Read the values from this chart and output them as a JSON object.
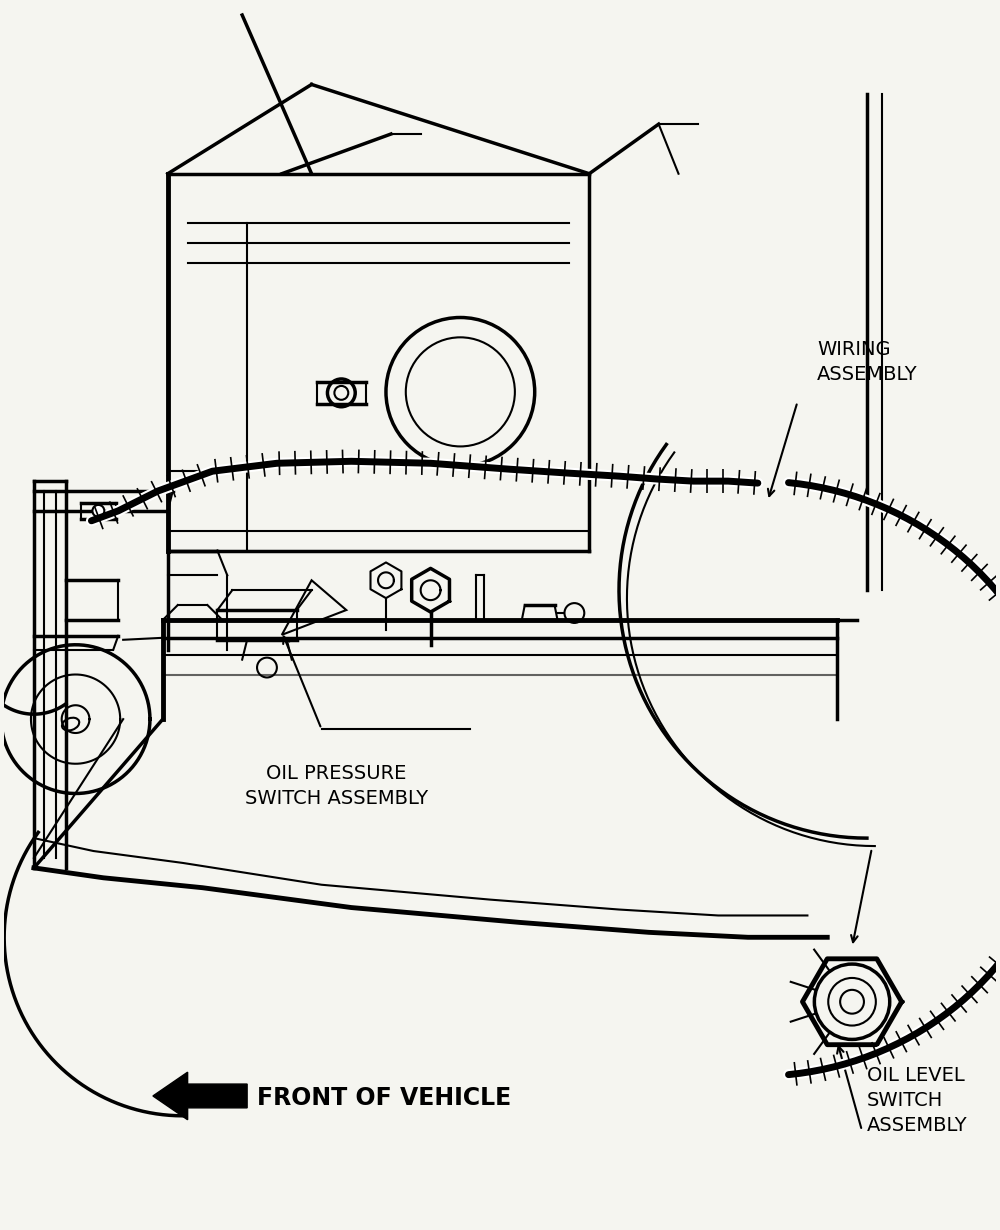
{
  "background_color": "#f5f5f0",
  "line_color": "#000000",
  "labels": {
    "wiring_assembly": "WIRING\nASSEMBLY",
    "oil_pressure_switch": "OIL PRESSURE\nSWITCH ASSEMBLY",
    "oil_level_switch": "OIL LEVEL\nSWITCH\nASSEMBLY",
    "front_of_vehicle": "FRONT OF VEHICLE"
  },
  "figsize": [
    10.0,
    12.3
  ],
  "dpi": 100
}
